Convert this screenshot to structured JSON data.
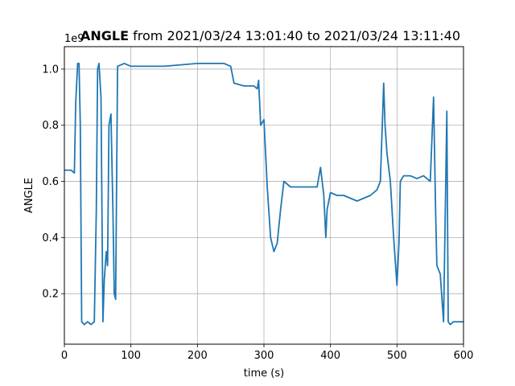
{
  "chart_data": {
    "type": "line",
    "title_bold": "ANGLE",
    "title_rest": " from 2021/03/24 13:01:40 to 2021/03/24 13:11:40",
    "xlabel": "time (s)",
    "ylabel": "ANGLE",
    "y_offset_label": "1e9",
    "xlim": [
      0,
      600
    ],
    "ylim": [
      0.02,
      1.08
    ],
    "xticks": [
      0,
      100,
      200,
      300,
      400,
      500,
      600
    ],
    "xtick_labels": [
      "0",
      "100",
      "200",
      "300",
      "400",
      "500",
      "600"
    ],
    "yticks": [
      0.2,
      0.4,
      0.6,
      0.8,
      1.0
    ],
    "ytick_labels": [
      "0.2",
      "0.4",
      "0.6",
      "0.8",
      "1.0"
    ],
    "grid": true,
    "line_color": "#1f77b4",
    "series": [
      {
        "x": [
          0,
          10,
          15,
          17,
          20,
          22,
          24,
          26,
          30,
          35,
          40,
          45,
          48,
          50,
          52,
          55,
          58,
          60,
          63,
          65,
          67,
          70,
          73,
          75,
          77,
          80,
          90,
          100,
          150,
          200,
          240,
          250,
          255,
          270,
          285,
          290,
          292,
          295,
          300,
          305,
          310,
          315,
          320,
          325,
          330,
          340,
          360,
          380,
          385,
          390,
          393,
          395,
          400,
          410,
          420,
          440,
          460,
          470,
          475,
          480,
          482,
          485,
          490,
          495,
          500,
          503,
          505,
          510,
          520,
          530,
          540,
          550,
          555,
          558,
          560,
          565,
          570,
          575,
          577,
          580,
          585,
          590,
          600
        ],
        "y": [
          0.64,
          0.64,
          0.63,
          0.88,
          1.02,
          1.02,
          0.8,
          0.1,
          0.09,
          0.1,
          0.09,
          0.1,
          0.5,
          1.0,
          1.02,
          0.9,
          0.1,
          0.25,
          0.35,
          0.3,
          0.8,
          0.84,
          0.5,
          0.2,
          0.18,
          1.01,
          1.02,
          1.01,
          1.01,
          1.02,
          1.02,
          1.01,
          0.95,
          0.94,
          0.94,
          0.93,
          0.96,
          0.8,
          0.82,
          0.58,
          0.4,
          0.35,
          0.38,
          0.5,
          0.6,
          0.58,
          0.58,
          0.58,
          0.65,
          0.55,
          0.4,
          0.5,
          0.56,
          0.55,
          0.55,
          0.53,
          0.55,
          0.57,
          0.6,
          0.95,
          0.8,
          0.7,
          0.6,
          0.4,
          0.23,
          0.38,
          0.6,
          0.62,
          0.62,
          0.61,
          0.62,
          0.6,
          0.9,
          0.5,
          0.3,
          0.27,
          0.1,
          0.85,
          0.1,
          0.09,
          0.1,
          0.1,
          0.1
        ]
      }
    ]
  }
}
